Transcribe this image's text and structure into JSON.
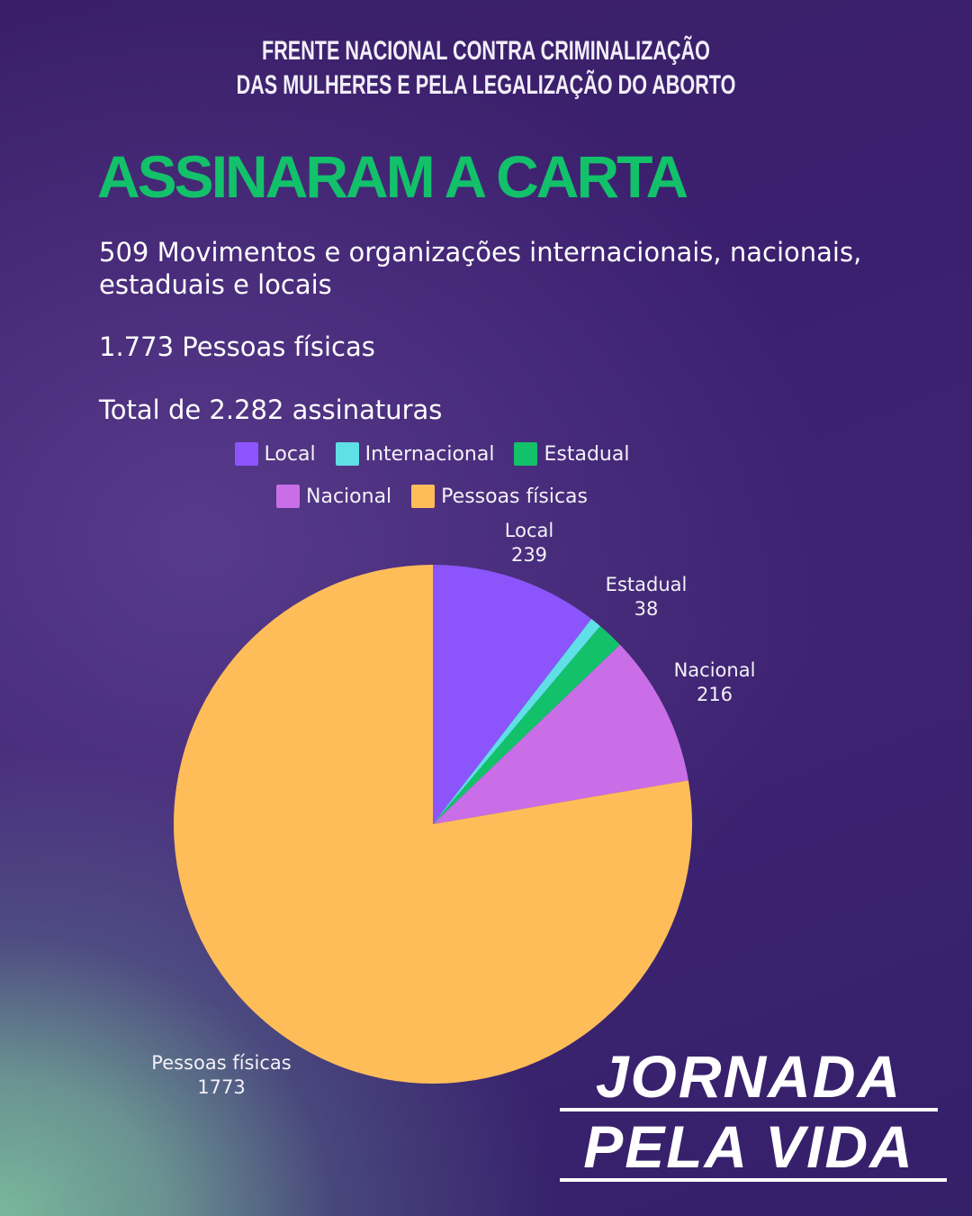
{
  "header": {
    "line1": "FRENTE NACIONAL CONTRA CRIMINALIZAÇÃO",
    "line2": "DAS MULHERES E PELA LEGALIZAÇÃO DO ABORTO"
  },
  "title": "ASSINARAM A CARTA",
  "stats": {
    "organizations": "509 Movimentos e organizações internacionais, nacionais, estaduais e locais",
    "individuals": "1.773 Pessoas físicas",
    "total": "Total de 2.282 assinaturas"
  },
  "logo": {
    "line1": "JORNADA",
    "line2": "PELA VIDA"
  },
  "colors": {
    "title": "#12c16a",
    "Local": "#8b55fb",
    "Internacional": "#5fdfe6",
    "Estadual": "#12c16a",
    "Nacional": "#c96ee6",
    "Pessoas físicas": "#ffbd5a"
  },
  "chart_data": {
    "type": "pie",
    "legend_position": "top",
    "legend_rows": [
      [
        "Local",
        "Internacional",
        "Estadual"
      ],
      [
        "Nacional",
        "Pessoas físicas"
      ]
    ],
    "slices": [
      {
        "name": "Local",
        "value": 239,
        "label": true
      },
      {
        "name": "Internacional",
        "value": 16,
        "label": false
      },
      {
        "name": "Estadual",
        "value": 38,
        "label": true
      },
      {
        "name": "Nacional",
        "value": 216,
        "label": true
      },
      {
        "name": "Pessoas físicas",
        "value": 1773,
        "label": true
      }
    ]
  }
}
